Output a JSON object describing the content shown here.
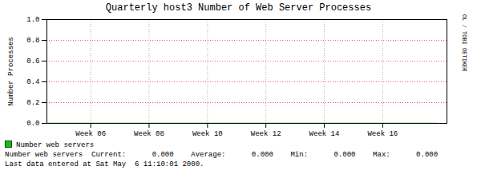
{
  "chart_data": {
    "type": "line",
    "title": "Quarterly host3 Number of Web Server Processes",
    "ylabel": "Number Processes",
    "x": [
      3.5,
      16.9
    ],
    "series": [
      {
        "name": "Number web servers",
        "color": "#00cc00",
        "values": [
          0.0,
          0.0
        ]
      }
    ],
    "xlim": [
      3.5,
      17.2
    ],
    "xticks": [
      {
        "value": 5,
        "label": "Week 06"
      },
      {
        "value": 7,
        "label": "Week 08"
      },
      {
        "value": 9,
        "label": "Week 10"
      },
      {
        "value": 11,
        "label": "Week 12"
      },
      {
        "value": 13,
        "label": "Week 14"
      },
      {
        "value": 15,
        "label": "Week 16"
      }
    ],
    "ylim": [
      0.0,
      1.0
    ],
    "yticks": [
      {
        "value": 0.0,
        "label": "0.0"
      },
      0.2,
      0.4,
      0.6,
      0.8,
      {
        "value": 1.0,
        "label": "1.0"
      }
    ],
    "grid": true,
    "legend": "bottom",
    "annotations": [
      "RRDTOOL / TOBI OETIKER",
      "Number web servers  Current:      0.000    Average:      0.000    Min:      0.000    Max:      0.000",
      "Last data entered at Sat May  6 11:10:01 2000."
    ]
  }
}
